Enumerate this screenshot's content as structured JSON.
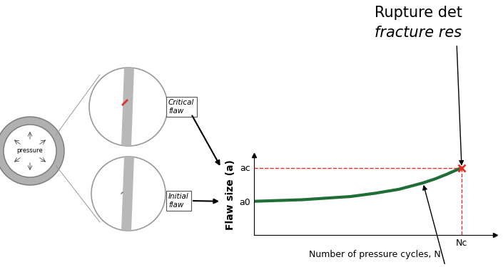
{
  "diagram": {
    "pipe_label": "pressure",
    "critical_flaw_label": "Critical flaw",
    "initial_flaw_label": "Initial flaw"
  },
  "chart_data": {
    "type": "line",
    "annotation_lines": [
      "Rupture det",
      "fracture res"
    ],
    "x_label": "Number of pressure cycles, N",
    "y_label": "Flaw size (a)",
    "x": [
      0,
      0.1,
      0.2,
      0.3,
      0.4,
      0.5,
      0.6,
      0.65,
      0.7,
      0.75,
      0.8,
      0.86
    ],
    "values": [
      0.42,
      0.43,
      0.44,
      0.46,
      0.48,
      0.52,
      0.57,
      0.61,
      0.65,
      0.7,
      0.76,
      0.84
    ],
    "color": "#1f6e35",
    "critical_point": {
      "x": 0.86,
      "y": 0.84,
      "color": "#e0302a"
    },
    "xlim": [
      0,
      1
    ],
    "ylim": [
      0,
      1
    ],
    "xticks": [
      {
        "value": 0.86,
        "label": "Nc"
      }
    ],
    "yticks": [
      {
        "value": 0.42,
        "label": "a0"
      },
      {
        "value": 0.84,
        "label": "ac"
      }
    ]
  }
}
